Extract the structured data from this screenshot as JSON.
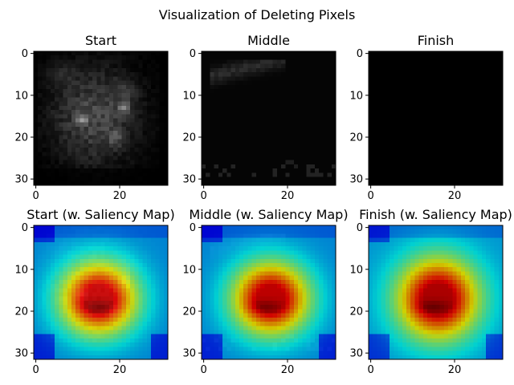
{
  "figure": {
    "title": "Visualization of Deleting Pixels"
  },
  "chart_data": {
    "type": "heatmap",
    "title": "Visualization of Deleting Pixels",
    "image_size": [
      32,
      32
    ],
    "x_ticks": [
      0,
      20
    ],
    "y_ticks": [
      0,
      10,
      20,
      30
    ],
    "xlim": [
      -0.5,
      31.5
    ],
    "ylim": [
      31.5,
      -0.5
    ],
    "grid": false,
    "colormaps": {
      "image": "gray",
      "saliency_overlay": "jet"
    },
    "panels": [
      {
        "title": "Start",
        "row": 0,
        "col": 0,
        "layer": "image",
        "image_state": "start",
        "overlay": false
      },
      {
        "title": "Middle",
        "row": 0,
        "col": 1,
        "layer": "image",
        "image_state": "middle",
        "overlay": false
      },
      {
        "title": "Finish",
        "row": 0,
        "col": 2,
        "layer": "image",
        "image_state": "finish",
        "overlay": false
      },
      {
        "title": "Start (w. Saliency Map)",
        "row": 1,
        "col": 0,
        "layer": "image",
        "image_state": "start",
        "overlay": true
      },
      {
        "title": "Middle (w. Saliency Map)",
        "row": 1,
        "col": 1,
        "layer": "image",
        "image_state": "middle",
        "overlay": true
      },
      {
        "title": "Finish (w. Saliency Map)",
        "row": 1,
        "col": 2,
        "layer": "image",
        "image_state": "finish",
        "overlay": true
      }
    ]
  }
}
